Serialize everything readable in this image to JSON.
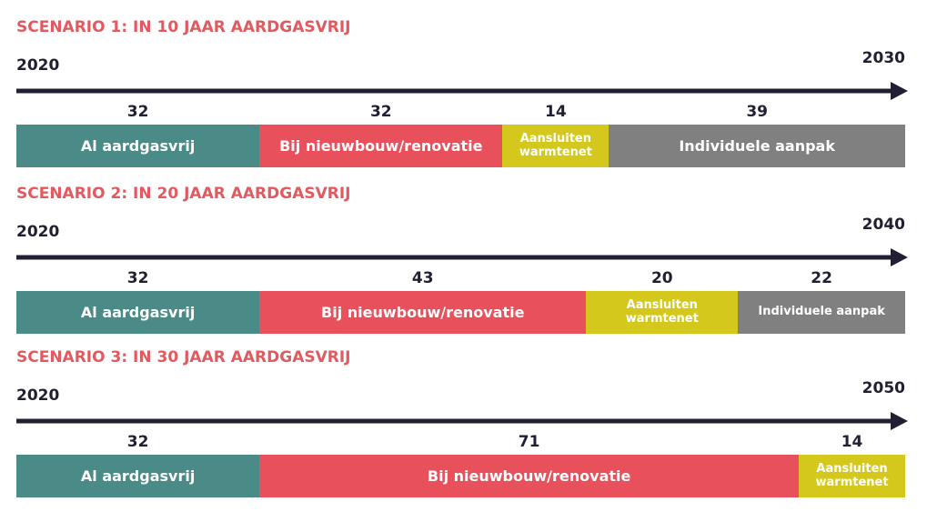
{
  "chart_data": [
    {
      "type": "stacked_bar",
      "title": "SCENARIO 1: IN 10 JAAR AARDGASVRIJ",
      "axis_start": "2020",
      "axis_end": "2030",
      "categories": [
        "Al aardgasvrij",
        "Bij nieuwbouw/renovatie",
        "Aansluiten warmtenet",
        "Individuele aanpak"
      ],
      "values": [
        32,
        32,
        14,
        39
      ],
      "colors": [
        "#4a8a87",
        "#e8505b",
        "#d4c81c",
        "#808080"
      ]
    },
    {
      "type": "stacked_bar",
      "title": "SCENARIO 2: IN 20 JAAR AARDGASVRIJ",
      "axis_start": "2020",
      "axis_end": "2040",
      "categories": [
        "Al aardgasvrij",
        "Bij nieuwbouw/renovatie",
        "Aansluiten warmtenet",
        "Individuele aanpak"
      ],
      "values": [
        32,
        43,
        20,
        22
      ],
      "colors": [
        "#4a8a87",
        "#e8505b",
        "#d4c81c",
        "#808080"
      ]
    },
    {
      "type": "stacked_bar",
      "title": "SCENARIO 3: IN 30 JAAR AARDGASVRIJ",
      "axis_start": "2020",
      "axis_end": "2050",
      "categories": [
        "Al aardgasvrij",
        "Bij nieuwbouw/renovatie",
        "Aansluiten warmtenet"
      ],
      "values": [
        32,
        71,
        14
      ],
      "colors": [
        "#4a8a87",
        "#e8505b",
        "#d4c81c"
      ]
    }
  ]
}
